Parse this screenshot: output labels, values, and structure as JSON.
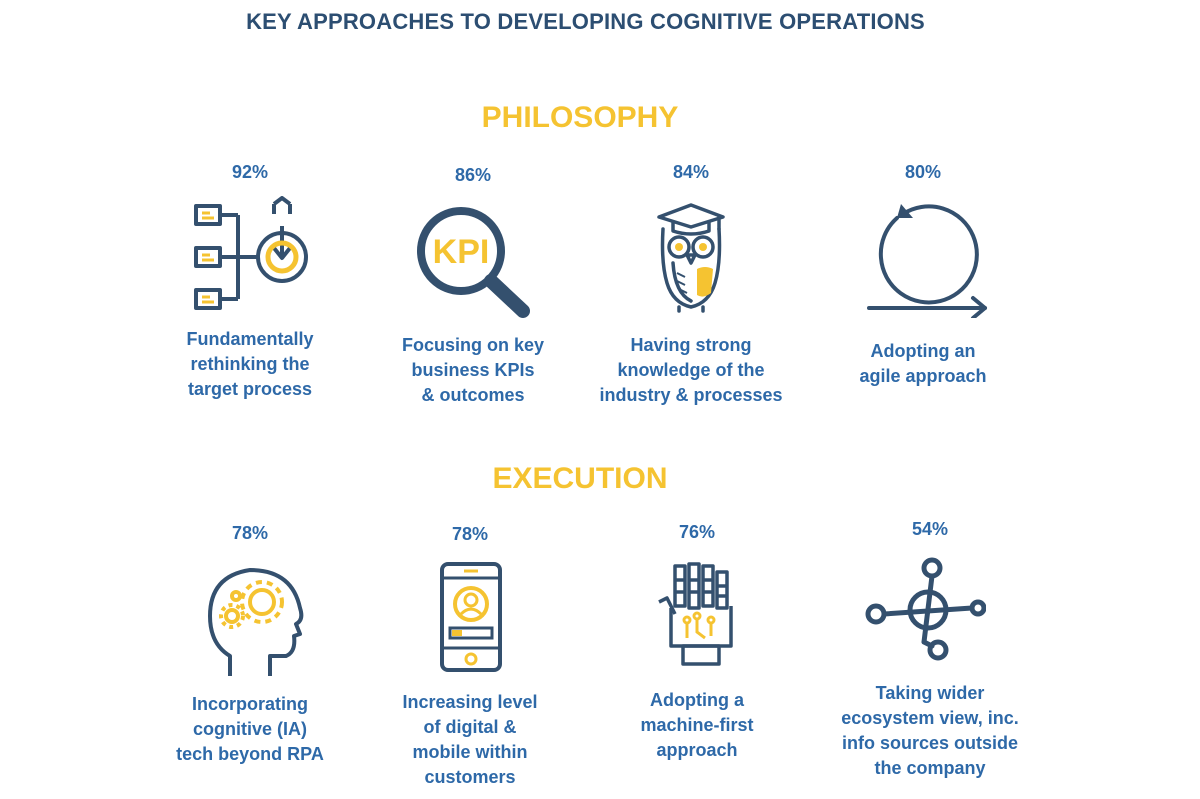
{
  "title": "KEY APPROACHES TO DEVELOPING COGNITIVE OPERATIONS",
  "colors": {
    "navy": "#2c4e72",
    "blue": "#2e69a8",
    "yellow": "#f5c331",
    "icon_stroke": "#34506e"
  },
  "sections": [
    {
      "heading": "PHILOSOPHY",
      "items": [
        {
          "percent": "92%",
          "icon": "target-process-icon",
          "lines": [
            "Fundamentally",
            "rethinking the",
            "target process"
          ]
        },
        {
          "percent": "86%",
          "icon": "kpi-magnifier-icon",
          "icon_text": "KPI",
          "lines": [
            "Focusing on key",
            "business KPIs",
            "& outcomes"
          ]
        },
        {
          "percent": "84%",
          "icon": "graduate-owl-icon",
          "lines": [
            "Having strong",
            "knowledge of the",
            "industry & processes"
          ]
        },
        {
          "percent": "80%",
          "icon": "agile-cycle-icon",
          "lines": [
            "Adopting an",
            "agile approach"
          ]
        }
      ]
    },
    {
      "heading": "EXECUTION",
      "items": [
        {
          "percent": "78%",
          "icon": "cognitive-head-icon",
          "lines": [
            "Incorporating",
            "cognitive (IA)",
            "tech beyond RPA"
          ]
        },
        {
          "percent": "78%",
          "icon": "mobile-phone-icon",
          "lines": [
            "Increasing level",
            "of digital &",
            "mobile within",
            "customers"
          ]
        },
        {
          "percent": "76%",
          "icon": "robot-hand-icon",
          "lines": [
            "Adopting a",
            "machine-first",
            "approach"
          ]
        },
        {
          "percent": "54%",
          "icon": "ecosystem-network-icon",
          "lines": [
            "Taking wider",
            "ecosystem view, inc.",
            "info sources outside",
            "the company"
          ]
        }
      ]
    }
  ]
}
